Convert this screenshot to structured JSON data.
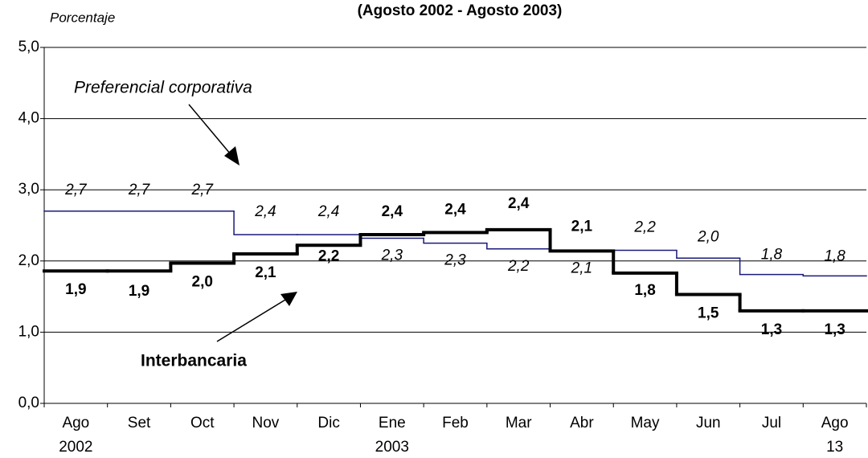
{
  "chart_data": {
    "type": "step",
    "title": "(Agosto 2002 - Agosto 2003)",
    "y_label": "Porcentaje",
    "categories": [
      "Ago",
      "Set",
      "Oct",
      "Nov",
      "Dic",
      "Ene",
      "Feb",
      "Mar",
      "Abr",
      "May",
      "Jun",
      "Jul",
      "Ago"
    ],
    "category_sublabels": [
      "2002",
      null,
      null,
      null,
      null,
      "2003",
      null,
      null,
      null,
      null,
      null,
      null,
      "13"
    ],
    "series": [
      {
        "name": "Preferencial corporativa",
        "color": "#1a1a7a",
        "values": [
          2.7,
          2.7,
          2.7,
          2.37,
          2.37,
          2.32,
          2.25,
          2.17,
          2.14,
          2.15,
          2.04,
          1.81,
          1.79
        ],
        "value_labels": [
          "2,7",
          "2,7",
          "2,7",
          "2,4",
          "2,4",
          "2,3",
          "2,3",
          "2,2",
          "2,1",
          "2,2",
          "2,0",
          "1,8",
          "1,8"
        ]
      },
      {
        "name": "Interbancaria",
        "color": "#000000",
        "values": [
          1.86,
          1.86,
          1.97,
          2.1,
          2.22,
          2.37,
          2.4,
          2.44,
          2.14,
          1.83,
          1.53,
          1.3,
          1.3
        ],
        "value_labels": [
          "1,9",
          "1,9",
          "2,0",
          "2,1",
          "2,2",
          "2,4",
          "2,4",
          "2,4",
          "2,1",
          "1,8",
          "1,5",
          "1,3",
          "1,3"
        ]
      }
    ],
    "ylim": [
      0,
      5
    ],
    "yticks": [
      {
        "value": 0,
        "label": "0,0"
      },
      {
        "value": 1,
        "label": "1,0"
      },
      {
        "value": 2,
        "label": "2,0"
      },
      {
        "value": 3,
        "label": "3,0"
      },
      {
        "value": 4,
        "label": "4,0"
      },
      {
        "value": 5,
        "label": "5,0"
      }
    ],
    "grid": true
  }
}
